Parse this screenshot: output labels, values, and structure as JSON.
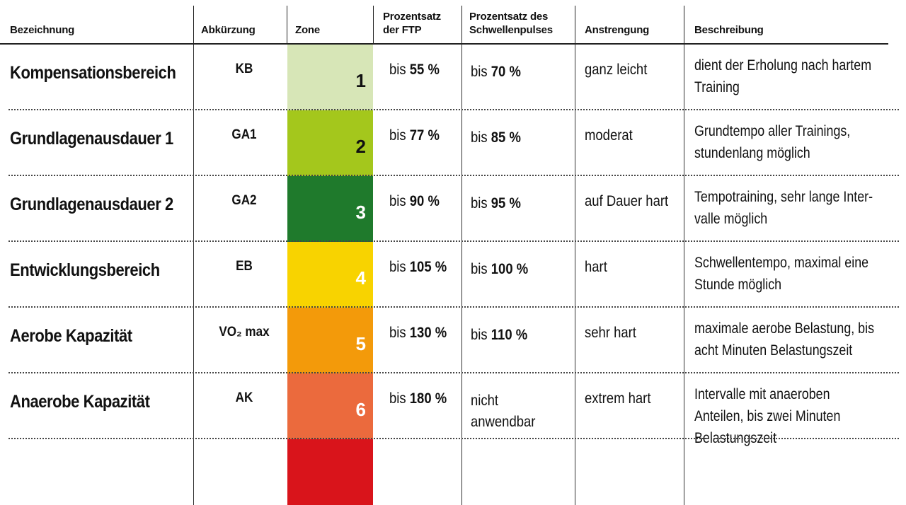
{
  "header": {
    "bezeichnung": "Bezeichnung",
    "abkuerzung": "Abkürzung",
    "zone": "Zone",
    "ftp_line1": "Prozentsatz",
    "ftp_line2": "der FTP",
    "pulse_line1": "Prozentsatz des",
    "pulse_line2": "Schwellenpulses",
    "anstrengung": "Anstrengung",
    "beschreibung": "Beschreibung"
  },
  "zone_colors": [
    "#d7e6b7",
    "#a4c71c",
    "#1f7a2c",
    "#f8d300",
    "#f39a0a",
    "#eb6a3d",
    "#d9141b"
  ],
  "rows": [
    {
      "name": "Kompensationsbereich",
      "abbr": "KB",
      "zone": "1",
      "ftp_prefix": "bis",
      "ftp": "55 %",
      "pulse_prefix": "bis",
      "pulse": "70 %",
      "effort": "ganz leicht",
      "desc": "dient der Erholung nach hartem Training"
    },
    {
      "name": "Grundlagenausdauer 1",
      "abbr": "GA1",
      "zone": "2",
      "ftp_prefix": "bis",
      "ftp": "77 %",
      "pulse_prefix": "bis",
      "pulse": "85 %",
      "effort": "moderat",
      "desc": "Grundtempo aller Trainings, stundenlang möglich"
    },
    {
      "name": "Grundlagenausdauer 2",
      "abbr": "GA2",
      "zone": "3",
      "ftp_prefix": "bis",
      "ftp": "90 %",
      "pulse_prefix": "bis",
      "pulse": "95 %",
      "effort": "auf Dauer hart",
      "desc": "Tempotraining, sehr lange Inter-valle möglich"
    },
    {
      "name": "Entwicklungsbereich",
      "abbr": "EB",
      "zone": "4",
      "ftp_prefix": "bis",
      "ftp": "105 %",
      "pulse_prefix": "bis",
      "pulse": "100 %",
      "effort": "hart",
      "desc": "Schwellentempo, maximal eine Stunde möglich"
    },
    {
      "name": "Aerobe Kapazität",
      "abbr": "VO₂ max",
      "zone": "5",
      "ftp_prefix": "bis",
      "ftp": "130 %",
      "pulse_prefix": "bis",
      "pulse": "110 %",
      "effort": "sehr hart",
      "desc": "maximale aerobe Belastung, bis acht Minuten Belastungszeit"
    },
    {
      "name": "Anaerobe Kapazität",
      "abbr": "AK",
      "zone": "6",
      "ftp_prefix": "bis",
      "ftp": "180 %",
      "pulse_prefix": "",
      "pulse": "nicht anwendbar",
      "effort": "extrem hart",
      "desc": "Intervalle mit anaeroben Anteilen, bis zwei Minuten Belastungszeit"
    },
    {
      "name": "",
      "abbr": "",
      "zone": "",
      "ftp_prefix": "",
      "ftp": "",
      "pulse_prefix": "",
      "pulse": "",
      "effort": "",
      "desc": ""
    }
  ]
}
